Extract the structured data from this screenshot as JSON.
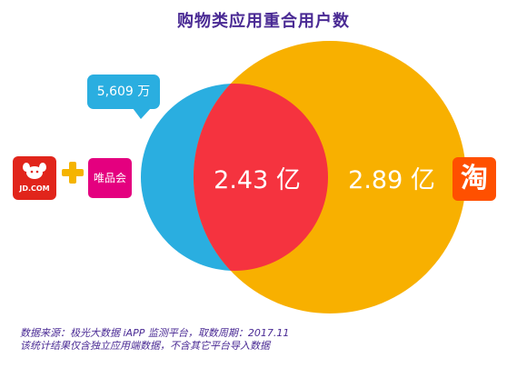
{
  "title": "购物类应用重合用户数",
  "colors": {
    "title": "#4a2a94",
    "jd_vip_circle": "#2aaee0",
    "taobao_circle": "#f8b000",
    "overlap": "#f5333f",
    "callout": "#2aaee0",
    "jd_logo": "#e1251b",
    "vip_logo": "#e4007f",
    "taobao_logo": "#ff5000",
    "plus": "#f5b400"
  },
  "logos": {
    "jd_text": "JD.COM",
    "jd_icon": "jd-dog-icon",
    "vip_text": "唯品会",
    "taobao_text": "淘",
    "plus_icon": "plus-icon"
  },
  "chart_data": {
    "type": "venn",
    "title": "购物类应用重合用户数",
    "sets": [
      {
        "name": "JD.COM + 唯品会",
        "label": "5,609 万"
      },
      {
        "name": "淘",
        "label": "2.89 亿"
      }
    ],
    "intersection": {
      "label": "2.43 亿"
    }
  },
  "labels": {
    "left_only": "5,609 万",
    "overlap": "2.43 亿",
    "right_only": "2.89 亿"
  },
  "source": {
    "line1": "数据来源：极光大数据 iAPP 监测平台，取数周期：2017.11",
    "line2": "该统计结果仅含独立应用端数据，不含其它平台导入数据"
  }
}
